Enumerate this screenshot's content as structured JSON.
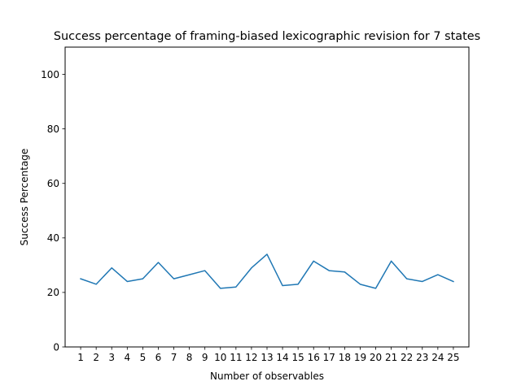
{
  "chart_data": {
    "type": "line",
    "title": "Success percentage of framing-biased lexicographic revision for 7 states",
    "xlabel": "Number of observables",
    "ylabel": "Success Percentage",
    "x": [
      1,
      2,
      3,
      4,
      5,
      6,
      7,
      8,
      9,
      10,
      11,
      12,
      13,
      14,
      15,
      16,
      17,
      18,
      19,
      20,
      21,
      22,
      23,
      24,
      25
    ],
    "series": [
      {
        "values": [
          25,
          23,
          29,
          24,
          25,
          31,
          25,
          26.5,
          28,
          21.5,
          22,
          29,
          34,
          22.5,
          23,
          31.5,
          28,
          27.5,
          23,
          21.5,
          31.5,
          25,
          24,
          26.5,
          24
        ]
      }
    ],
    "xticks": [
      "1",
      "2",
      "3",
      "4",
      "5",
      "6",
      "7",
      "8",
      "9",
      "10",
      "11",
      "12",
      "13",
      "14",
      "15",
      "16",
      "17",
      "18",
      "19",
      "20",
      "21",
      "22",
      "23",
      "24",
      "25"
    ],
    "yticks": [
      "0",
      "20",
      "40",
      "60",
      "80",
      "100"
    ],
    "ylim": [
      0,
      110
    ],
    "xlim": [
      0,
      26
    ],
    "grid": false,
    "colors": {
      "line": "#1f77b4",
      "axes": "#000000",
      "background": "#ffffff"
    }
  }
}
